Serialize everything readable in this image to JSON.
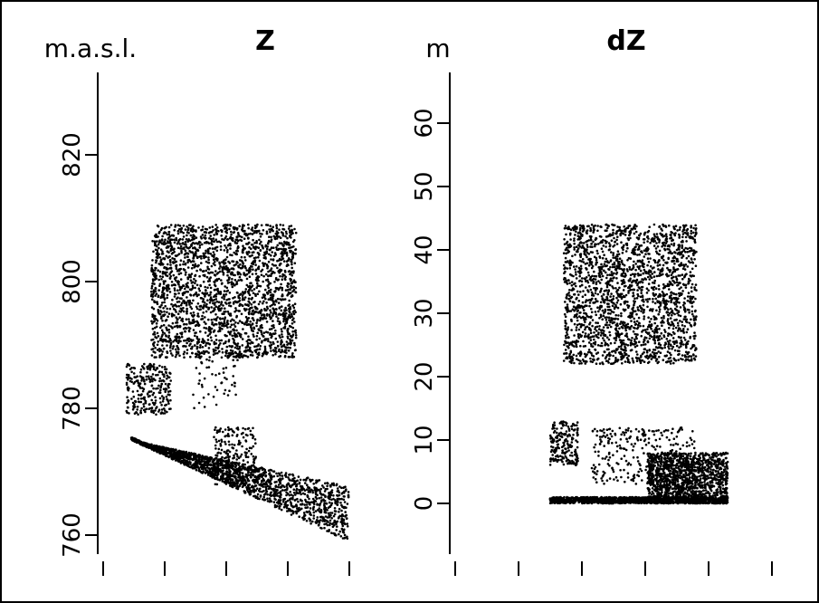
{
  "chart_data": [
    {
      "type": "scatter",
      "title": "Z",
      "ylabel": "m.a.s.l.",
      "xlabel": "",
      "ylim": [
        757,
        833
      ],
      "y_ticks": [
        760,
        780,
        800,
        820
      ],
      "y_tick_labels": [
        "760",
        "780",
        "800",
        "820"
      ],
      "x_ticks": 5,
      "x_tick_labels": [],
      "grid": false,
      "point_color": "#000000",
      "clusters": [
        {
          "name": "",
          "x": [
            0.2,
            0.78
          ],
          "y": [
            788,
            809
          ],
          "n": 2400
        },
        {
          "name": "",
          "x": [
            0.1,
            0.28
          ],
          "y": [
            779,
            787
          ],
          "n": 260
        },
        {
          "name": "",
          "x": [
            0.45,
            0.62
          ],
          "y": [
            768,
            777
          ],
          "n": 220
        },
        {
          "name": "",
          "x": [
            0.35,
            0.55
          ],
          "y": [
            780,
            790
          ],
          "n": 60
        },
        {
          "name": "",
          "x": [
            0.12,
            0.99
          ],
          "y": [
            759,
            775
          ],
          "n": 1800
        }
      ]
    },
    {
      "type": "scatter",
      "title": "dZ",
      "ylabel": "m",
      "xlabel": "",
      "ylim": [
        -8,
        68
      ],
      "y_ticks": [
        0,
        10,
        20,
        30,
        40,
        50,
        60
      ],
      "y_tick_labels": [
        "0",
        "10",
        "20",
        "30",
        "40",
        "50",
        "60"
      ],
      "x_ticks": 6,
      "x_tick_labels": [],
      "grid": false,
      "point_color": "#000000",
      "clusters": [
        {
          "name": "",
          "x": [
            0.32,
            0.7
          ],
          "y": [
            22,
            44
          ],
          "n": 2200
        },
        {
          "name": "",
          "x": [
            0.28,
            0.36
          ],
          "y": [
            6,
            13
          ],
          "n": 200
        },
        {
          "name": "",
          "x": [
            0.4,
            0.7
          ],
          "y": [
            3,
            12
          ],
          "n": 300
        },
        {
          "name": "",
          "x": [
            0.56,
            0.79
          ],
          "y": [
            0,
            8
          ],
          "n": 1300
        },
        {
          "name": "",
          "x": [
            0.28,
            0.79
          ],
          "y": [
            0,
            1
          ],
          "n": 1200
        }
      ]
    }
  ]
}
